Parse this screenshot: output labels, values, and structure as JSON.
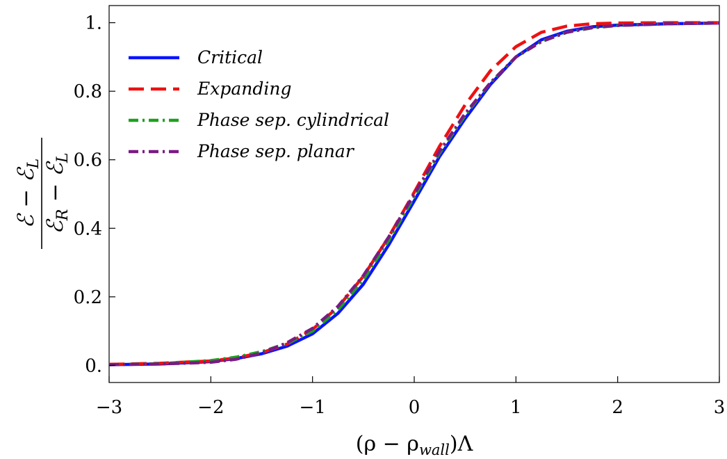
{
  "chart_data": {
    "type": "line",
    "title": "",
    "xlabel": "(ρ − ρ",
    "xlabel_sub": "wall",
    "xlabel_tail": ")Λ",
    "ylabel_numerator": "ℰ − ℰ",
    "ylabel_numerator_sub": "L",
    "ylabel_denominator": "ℰ",
    "ylabel_denominator_sub1": "R",
    "ylabel_denominator_mid": " − ℰ",
    "ylabel_denominator_sub2": "L",
    "xlim": [
      -3,
      3
    ],
    "ylim": [
      -0.05,
      1.05
    ],
    "xticks": [
      -3,
      -2,
      -1,
      0,
      1,
      2,
      3
    ],
    "xtick_labels": [
      "−3",
      "−2",
      "−1",
      "0",
      "1",
      "2",
      "3"
    ],
    "yticks": [
      0,
      0.2,
      0.4,
      0.6,
      0.8,
      1.0
    ],
    "ytick_labels": [
      "0.",
      "0.2",
      "0.4",
      "0.6",
      "0.8",
      "1."
    ],
    "grid": false,
    "legend_position": "top-left",
    "series": [
      {
        "name": "Critical",
        "color": "#0a14ff",
        "dash": "solid",
        "x": [
          -3,
          -2.5,
          -2,
          -1.75,
          -1.5,
          -1.25,
          -1,
          -0.75,
          -0.5,
          -0.25,
          0,
          0.25,
          0.5,
          0.75,
          1,
          1.25,
          1.5,
          1.75,
          2,
          2.5,
          3
        ],
        "y": [
          0.002,
          0.004,
          0.011,
          0.02,
          0.034,
          0.056,
          0.092,
          0.152,
          0.237,
          0.352,
          0.48,
          0.61,
          0.72,
          0.82,
          0.9,
          0.95,
          0.975,
          0.988,
          0.993,
          0.997,
          0.999
        ]
      },
      {
        "name": "Expanding",
        "color": "#ee1111",
        "dash": "long-dash",
        "x": [
          -3,
          -2.5,
          -2,
          -1.75,
          -1.5,
          -1.25,
          -1,
          -0.75,
          -0.5,
          -0.25,
          0,
          0.25,
          0.5,
          0.75,
          1,
          1.25,
          1.5,
          1.75,
          2,
          2.5,
          3
        ],
        "y": [
          0.003,
          0.006,
          0.013,
          0.022,
          0.037,
          0.062,
          0.105,
          0.17,
          0.26,
          0.375,
          0.505,
          0.64,
          0.76,
          0.86,
          0.93,
          0.972,
          0.99,
          0.997,
          0.999,
          1.0,
          1.0
        ]
      },
      {
        "name": "Phase sep. cylindrical",
        "color": "#1ea01e",
        "dash": "dash-dot",
        "x": [
          -3,
          -2.5,
          -2,
          -1.75,
          -1.5,
          -1.25,
          -1,
          -0.75,
          -0.5,
          -0.25,
          0,
          0.25,
          0.5,
          0.75,
          1,
          1.25,
          1.5,
          1.75,
          2,
          2.5,
          3
        ],
        "y": [
          0.002,
          0.005,
          0.014,
          0.024,
          0.04,
          0.064,
          0.1,
          0.162,
          0.25,
          0.365,
          0.492,
          0.62,
          0.73,
          0.825,
          0.9,
          0.945,
          0.972,
          0.985,
          0.992,
          0.997,
          0.999
        ]
      },
      {
        "name": "Phase sep. planar",
        "color": "#7a1a84",
        "dash": "dash-dot",
        "x": [
          -3,
          -2.5,
          -2,
          -1.75,
          -1.5,
          -1.25,
          -1,
          -0.75,
          -0.5,
          -0.25,
          0,
          0.25,
          0.5,
          0.75,
          1,
          1.25,
          1.5,
          1.75,
          2,
          2.5,
          3
        ],
        "y": [
          0.002,
          0.004,
          0.009,
          0.018,
          0.036,
          0.066,
          0.108,
          0.172,
          0.262,
          0.375,
          0.5,
          0.625,
          0.735,
          0.825,
          0.9,
          0.945,
          0.972,
          0.986,
          0.992,
          0.997,
          0.999
        ]
      }
    ]
  }
}
